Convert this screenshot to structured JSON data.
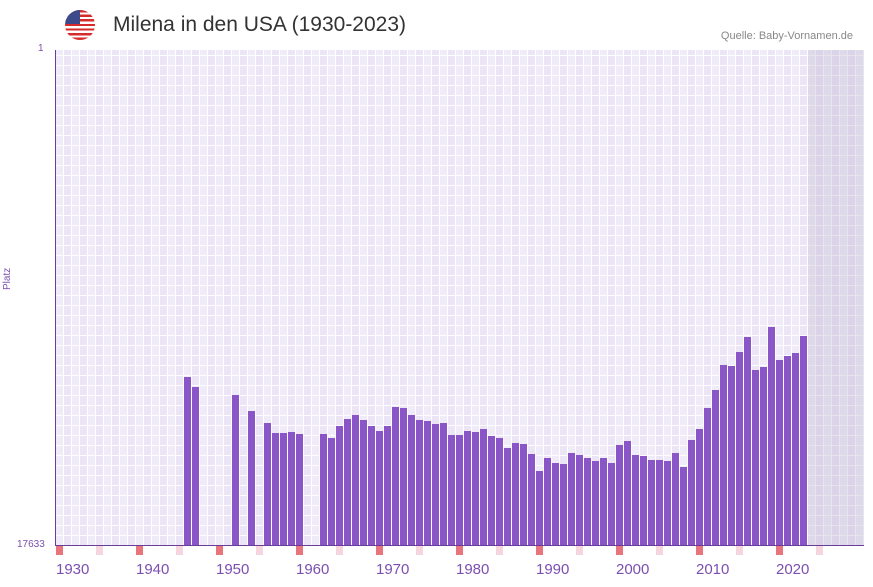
{
  "header": {
    "title": "Milena in den USA (1930-2023)",
    "source": "Quelle: Baby-Vornamen.de",
    "flag_icon": "us-flag-icon"
  },
  "colors": {
    "bar": "#8a55c7",
    "decade_marker": "#e8747c",
    "half_decade_marker": "#f5d6de",
    "axis": "#6a3d9a"
  },
  "chart_data": {
    "type": "bar",
    "title": "Milena in den USA (1930-2023)",
    "xlabel": "",
    "ylabel": "Platz",
    "y_axis_inverted": true,
    "ylim": [
      1,
      17633
    ],
    "y_tick_labels": [
      "1",
      "17633"
    ],
    "xlim": [
      1930,
      2030
    ],
    "x_tick_labels": [
      "1930",
      "1940",
      "1950",
      "1960",
      "1970",
      "1980",
      "1990",
      "2000",
      "2010",
      "2020"
    ],
    "future_shaded_from": 2024,
    "grid": true,
    "years": [
      1946,
      1947,
      1952,
      1954,
      1956,
      1957,
      1958,
      1959,
      1960,
      1963,
      1964,
      1965,
      1966,
      1967,
      1968,
      1969,
      1970,
      1971,
      1972,
      1973,
      1974,
      1975,
      1976,
      1977,
      1978,
      1979,
      1980,
      1981,
      1982,
      1983,
      1984,
      1985,
      1986,
      1987,
      1988,
      1989,
      1990,
      1991,
      1992,
      1993,
      1994,
      1995,
      1996,
      1997,
      1998,
      1999,
      2000,
      2001,
      2002,
      2003,
      2004,
      2005,
      2006,
      2007,
      2008,
      2009,
      2010,
      2011,
      2012,
      2013,
      2014,
      2015,
      2016,
      2017,
      2018,
      2019,
      2020,
      2021,
      2022,
      2023
    ],
    "ranks": [
      11640,
      12000,
      12290,
      12860,
      13290,
      13640,
      13640,
      13610,
      13680,
      13680,
      13820,
      13390,
      13150,
      13000,
      13180,
      13390,
      13570,
      13390,
      12720,
      12750,
      13000,
      13180,
      13220,
      13320,
      13290,
      13710,
      13710,
      13570,
      13610,
      13500,
      13750,
      13820,
      14180,
      14000,
      14040,
      14390,
      15000,
      14530,
      14710,
      14750,
      14360,
      14430,
      14530,
      14640,
      14530,
      14710,
      14070,
      13930,
      14430,
      14460,
      14600,
      14600,
      14640,
      14360,
      14850,
      13890,
      13500,
      12750,
      12110,
      11220,
      11260,
      10760,
      10220,
      11400,
      11290,
      9870,
      11040,
      10900,
      10790,
      10190
    ]
  }
}
